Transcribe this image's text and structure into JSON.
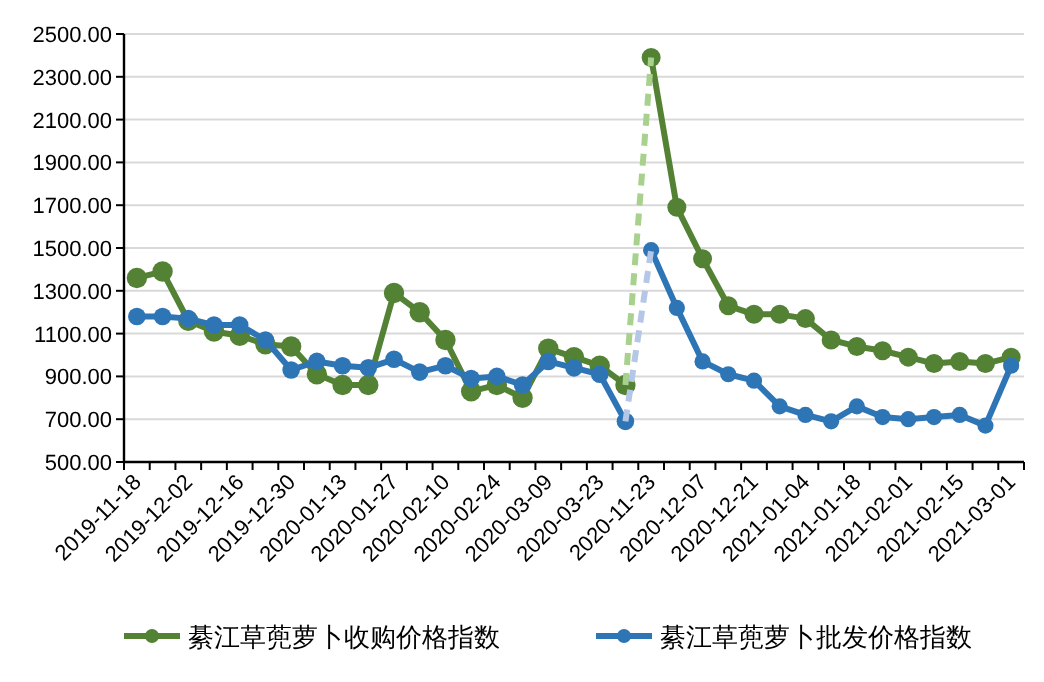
{
  "chart_data": {
    "type": "line",
    "categories": [
      "2019-11-18",
      null,
      "2019-12-02",
      null,
      "2019-12-16",
      null,
      "2019-12-30",
      null,
      "2020-01-13",
      null,
      "2020-01-27",
      null,
      "2020-02-10",
      null,
      "2020-02-24",
      null,
      "2020-03-09",
      null,
      "2020-03-23",
      null,
      "2020-11-23",
      null,
      "2020-12-07",
      null,
      "2020-12-21",
      null,
      "2021-01-04",
      null,
      "2021-01-18",
      null,
      "2021-02-01",
      null,
      "2021-02-15",
      null,
      "2021-03-01"
    ],
    "series": [
      {
        "name": "綦江草蔸萝卜收购价格指数",
        "color": "#548235",
        "marker": "circle",
        "line_style": "solid",
        "values": [
          1360,
          1390,
          1160,
          1110,
          1090,
          1050,
          1040,
          910,
          860,
          860,
          1290,
          1200,
          1070,
          830,
          860,
          800,
          1030,
          990,
          950,
          860,
          null,
          null,
          null,
          null,
          null,
          null,
          null,
          null,
          null,
          null,
          null,
          null,
          null,
          null,
          null
        ]
      },
      {
        "color": "#548235",
        "marker": "circle",
        "line_style": "solid",
        "values": [
          null,
          null,
          null,
          null,
          null,
          null,
          null,
          null,
          null,
          null,
          null,
          null,
          null,
          null,
          null,
          null,
          null,
          null,
          null,
          null,
          2390,
          1690,
          1450,
          1230,
          1190,
          1190,
          1170,
          1070,
          1040,
          1020,
          990,
          960,
          970,
          960,
          990
        ]
      },
      {
        "name": "綦江草蔸萝卜批发价格指数",
        "color": "#2e75b6",
        "marker": "circle",
        "line_style": "solid",
        "values": [
          1180,
          1180,
          1170,
          1140,
          1140,
          1070,
          930,
          970,
          950,
          940,
          980,
          920,
          950,
          890,
          900,
          860,
          970,
          940,
          910,
          690,
          null,
          null,
          null,
          null,
          null,
          null,
          null,
          null,
          null,
          null,
          null,
          null,
          null,
          null,
          null
        ]
      },
      {
        "color": "#2e75b6",
        "marker": "circle",
        "line_style": "solid",
        "values": [
          null,
          null,
          null,
          null,
          null,
          null,
          null,
          null,
          null,
          null,
          null,
          null,
          null,
          null,
          null,
          null,
          null,
          null,
          null,
          null,
          1490,
          1220,
          970,
          910,
          880,
          760,
          720,
          690,
          760,
          710,
          700,
          710,
          720,
          670,
          950
        ]
      },
      {
        "color": "#a9d18e",
        "marker": "none",
        "line_style": "dashed",
        "values": [
          null,
          null,
          null,
          null,
          null,
          null,
          null,
          null,
          null,
          null,
          null,
          null,
          null,
          null,
          null,
          null,
          null,
          null,
          null,
          860,
          2390,
          null,
          null,
          null,
          null,
          null,
          null,
          null,
          null,
          null,
          null,
          null,
          null,
          null,
          null
        ]
      },
      {
        "color": "#b4c7e7",
        "marker": "none",
        "line_style": "dashed",
        "values": [
          null,
          null,
          null,
          null,
          null,
          null,
          null,
          null,
          null,
          null,
          null,
          null,
          null,
          null,
          null,
          null,
          null,
          null,
          null,
          690,
          1490,
          null,
          null,
          null,
          null,
          null,
          null,
          null,
          null,
          null,
          null,
          null,
          null,
          null,
          null
        ]
      }
    ],
    "ylim": [
      500,
      2500
    ],
    "yticks": [
      {
        "value": 500,
        "label": "500.00"
      },
      {
        "value": 700,
        "label": "700.00"
      },
      {
        "value": 900,
        "label": "900.00"
      },
      {
        "value": 1100,
        "label": "1100.00"
      },
      {
        "value": 1300,
        "label": "1300.00"
      },
      {
        "value": 1500,
        "label": "1500.00"
      },
      {
        "value": 1700,
        "label": "1700.00"
      },
      {
        "value": 1900,
        "label": "1900.00"
      },
      {
        "value": 2100,
        "label": "2100.00"
      },
      {
        "value": 2300,
        "label": "2300.00"
      },
      {
        "value": 2500,
        "label": "2500.00"
      }
    ],
    "grid": "y",
    "legend": "bottom"
  }
}
